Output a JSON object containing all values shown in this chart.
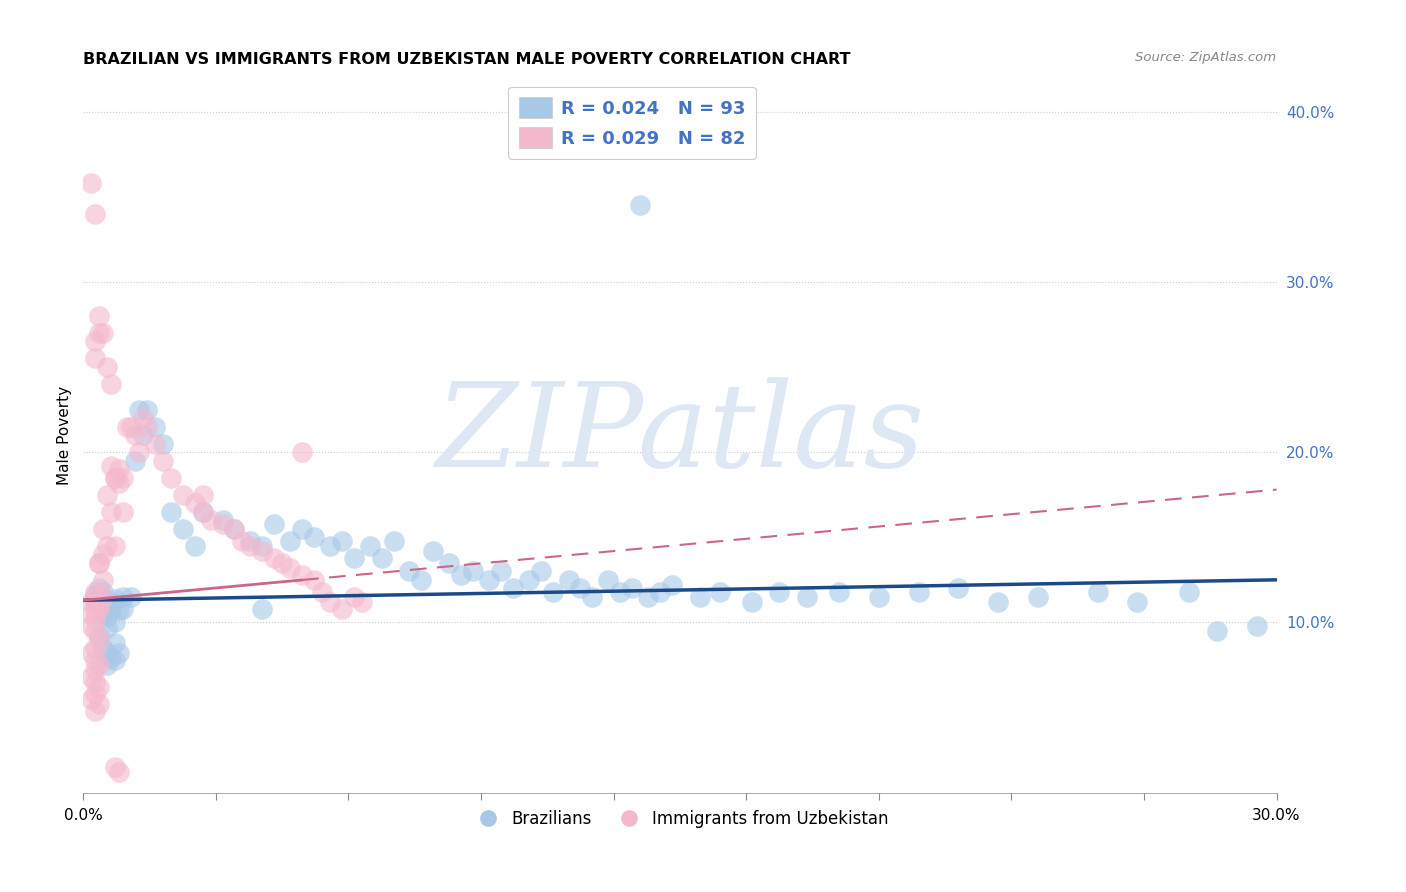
{
  "title": "BRAZILIAN VS IMMIGRANTS FROM UZBEKISTAN MALE POVERTY CORRELATION CHART",
  "source": "Source: ZipAtlas.com",
  "ylabel": "Male Poverty",
  "xlim": [
    0.0,
    0.3
  ],
  "ylim": [
    0.0,
    0.42
  ],
  "legend1_label": "R = 0.024   N = 93",
  "legend2_label": "R = 0.029   N = 82",
  "legend_color_text": "#4472c4",
  "blue_color": "#a8c8e8",
  "pink_color": "#f4b8cc",
  "blue_line_color": "#1a4a8a",
  "pink_line_color": "#cc6688",
  "watermark": "ZIPatlas",
  "watermark_color": "#dde8f4",
  "bottom_legend_blue": "Brazilians",
  "bottom_legend_pink": "Immigrants from Uzbekistan",
  "blue_trend_x": [
    0.0,
    0.3
  ],
  "blue_trend_y": [
    0.113,
    0.125
  ],
  "pink_trend_x": [
    0.0,
    0.3
  ],
  "pink_trend_y": [
    0.113,
    0.178
  ],
  "pink_trend_solid_end": 0.055,
  "grid_color": "#cccccc",
  "grid_style": ":",
  "right_ytick_vals": [
    0.1,
    0.2,
    0.3,
    0.4
  ],
  "right_ytick_labels": [
    "10.0%",
    "20.0%",
    "30.0%",
    "40.0%"
  ],
  "xtick_labels": [
    "0.0%",
    "30.0%"
  ],
  "xtick_vals": [
    0.0,
    0.3
  ],
  "blue_x": [
    0.004,
    0.003,
    0.005,
    0.006,
    0.004,
    0.007,
    0.005,
    0.003,
    0.006,
    0.008,
    0.007,
    0.005,
    0.004,
    0.006,
    0.009,
    0.007,
    0.005,
    0.008,
    0.006,
    0.004,
    0.008,
    0.006,
    0.005,
    0.007,
    0.009,
    0.01,
    0.008,
    0.006,
    0.012,
    0.01,
    0.014,
    0.015,
    0.013,
    0.016,
    0.018,
    0.02,
    0.022,
    0.025,
    0.028,
    0.03,
    0.035,
    0.038,
    0.042,
    0.045,
    0.048,
    0.052,
    0.055,
    0.058,
    0.062,
    0.065,
    0.068,
    0.072,
    0.075,
    0.078,
    0.082,
    0.085,
    0.088,
    0.092,
    0.095,
    0.098,
    0.102,
    0.105,
    0.108,
    0.112,
    0.115,
    0.118,
    0.122,
    0.125,
    0.128,
    0.132,
    0.135,
    0.138,
    0.142,
    0.145,
    0.148,
    0.155,
    0.16,
    0.168,
    0.175,
    0.182,
    0.19,
    0.2,
    0.21,
    0.22,
    0.23,
    0.24,
    0.255,
    0.265,
    0.278,
    0.285,
    0.14,
    0.295,
    0.045
  ],
  "blue_y": [
    0.115,
    0.112,
    0.118,
    0.108,
    0.12,
    0.11,
    0.113,
    0.116,
    0.109,
    0.114,
    0.108,
    0.105,
    0.11,
    0.103,
    0.107,
    0.112,
    0.106,
    0.1,
    0.097,
    0.092,
    0.088,
    0.082,
    0.085,
    0.079,
    0.082,
    0.115,
    0.078,
    0.075,
    0.115,
    0.108,
    0.225,
    0.21,
    0.195,
    0.225,
    0.215,
    0.205,
    0.165,
    0.155,
    0.145,
    0.165,
    0.16,
    0.155,
    0.148,
    0.145,
    0.158,
    0.148,
    0.155,
    0.15,
    0.145,
    0.148,
    0.138,
    0.145,
    0.138,
    0.148,
    0.13,
    0.125,
    0.142,
    0.135,
    0.128,
    0.13,
    0.125,
    0.13,
    0.12,
    0.125,
    0.13,
    0.118,
    0.125,
    0.12,
    0.115,
    0.125,
    0.118,
    0.12,
    0.115,
    0.118,
    0.122,
    0.115,
    0.118,
    0.112,
    0.118,
    0.115,
    0.118,
    0.115,
    0.118,
    0.12,
    0.112,
    0.115,
    0.118,
    0.112,
    0.118,
    0.095,
    0.345,
    0.098,
    0.108
  ],
  "pink_x": [
    0.002,
    0.003,
    0.004,
    0.003,
    0.002,
    0.004,
    0.003,
    0.002,
    0.003,
    0.004,
    0.003,
    0.002,
    0.003,
    0.004,
    0.003,
    0.002,
    0.003,
    0.004,
    0.003,
    0.002,
    0.004,
    0.003,
    0.005,
    0.004,
    0.003,
    0.005,
    0.004,
    0.006,
    0.005,
    0.007,
    0.006,
    0.008,
    0.007,
    0.009,
    0.008,
    0.01,
    0.009,
    0.011,
    0.012,
    0.013,
    0.014,
    0.015,
    0.016,
    0.018,
    0.02,
    0.022,
    0.025,
    0.028,
    0.03,
    0.032,
    0.035,
    0.038,
    0.04,
    0.042,
    0.045,
    0.048,
    0.05,
    0.052,
    0.055,
    0.058,
    0.06,
    0.062,
    0.065,
    0.068,
    0.07,
    0.055,
    0.03,
    0.01,
    0.008,
    0.005,
    0.004,
    0.003,
    0.003,
    0.004,
    0.002,
    0.003,
    0.004,
    0.005,
    0.006,
    0.007,
    0.008,
    0.009
  ],
  "pink_y": [
    0.112,
    0.115,
    0.108,
    0.118,
    0.105,
    0.11,
    0.102,
    0.098,
    0.095,
    0.09,
    0.085,
    0.082,
    0.078,
    0.075,
    0.072,
    0.068,
    0.065,
    0.062,
    0.058,
    0.055,
    0.052,
    0.048,
    0.115,
    0.112,
    0.108,
    0.125,
    0.135,
    0.145,
    0.155,
    0.165,
    0.175,
    0.185,
    0.192,
    0.19,
    0.185,
    0.185,
    0.182,
    0.215,
    0.215,
    0.21,
    0.2,
    0.22,
    0.215,
    0.205,
    0.195,
    0.185,
    0.175,
    0.17,
    0.165,
    0.16,
    0.158,
    0.155,
    0.148,
    0.145,
    0.142,
    0.138,
    0.135,
    0.132,
    0.128,
    0.125,
    0.118,
    0.112,
    0.108,
    0.115,
    0.112,
    0.2,
    0.175,
    0.165,
    0.145,
    0.14,
    0.135,
    0.265,
    0.255,
    0.27,
    0.358,
    0.34,
    0.28,
    0.27,
    0.25,
    0.24,
    0.015,
    0.012
  ]
}
